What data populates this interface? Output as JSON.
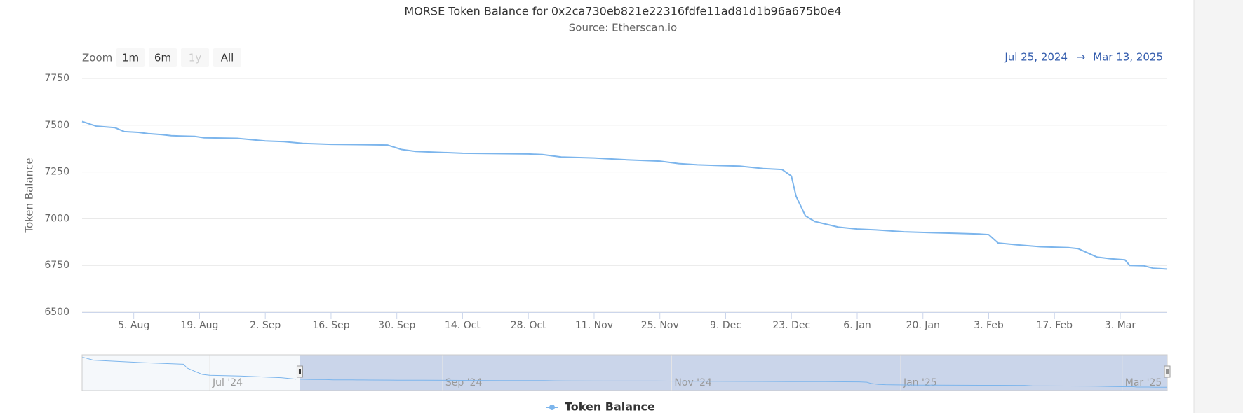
{
  "chart_data": {
    "type": "line",
    "title": "MORSE Token Balance for 0x2ca730eb821e22316fdfe11ad81d1b96a675b0e4",
    "subtitle": "Source: Etherscan.io",
    "y_label": "Token Balance",
    "range_selector": {
      "label": "Zoom",
      "buttons": [
        "1m",
        "6m",
        "1y",
        "All"
      ],
      "disabled": [
        "1y"
      ],
      "from": "Jul 25, 2024",
      "arrow": "→",
      "to": "Mar 13, 2025"
    },
    "x": [
      "2024-07-25",
      "2024-07-28",
      "2024-08-01",
      "2024-08-03",
      "2024-08-06",
      "2024-08-08",
      "2024-08-11",
      "2024-08-13",
      "2024-08-18",
      "2024-08-20",
      "2024-08-27",
      "2024-09-02",
      "2024-09-06",
      "2024-09-10",
      "2024-09-16",
      "2024-09-23",
      "2024-09-28",
      "2024-10-01",
      "2024-10-04",
      "2024-10-14",
      "2024-10-28",
      "2024-10-31",
      "2024-11-04",
      "2024-11-11",
      "2024-11-18",
      "2024-11-25",
      "2024-11-29",
      "2024-12-03",
      "2024-12-08",
      "2024-12-12",
      "2024-12-17",
      "2024-12-21",
      "2024-12-23",
      "2024-12-24",
      "2024-12-26",
      "2024-12-28",
      "2025-01-02",
      "2025-01-06",
      "2025-01-10",
      "2025-01-16",
      "2025-01-22",
      "2025-01-27",
      "2025-02-01",
      "2025-02-03",
      "2025-02-05",
      "2025-02-09",
      "2025-02-14",
      "2025-02-20",
      "2025-02-22",
      "2025-02-26",
      "2025-03-01",
      "2025-03-04",
      "2025-03-05",
      "2025-03-08",
      "2025-03-10",
      "2025-03-13"
    ],
    "series": [
      {
        "name": "Token Balance",
        "color": "#7cb5ec",
        "values": [
          7520,
          7495,
          7487,
          7466,
          7462,
          7455,
          7450,
          7444,
          7440,
          7433,
          7430,
          7416,
          7412,
          7403,
          7398,
          7396,
          7394,
          7370,
          7360,
          7350,
          7346,
          7343,
          7330,
          7325,
          7315,
          7308,
          7295,
          7288,
          7284,
          7281,
          7268,
          7263,
          7228,
          7120,
          7015,
          6985,
          6955,
          6945,
          6940,
          6930,
          6925,
          6922,
          6918,
          6915,
          6870,
          6860,
          6850,
          6845,
          6840,
          6795,
          6785,
          6780,
          6750,
          6748,
          6735,
          6730
        ]
      }
    ],
    "xlim": [
      "2024-07-25",
      "2025-03-13"
    ],
    "xticks": [
      {
        "value": "2024-08-05",
        "label": "5. Aug"
      },
      {
        "value": "2024-08-19",
        "label": "19. Aug"
      },
      {
        "value": "2024-09-02",
        "label": "2. Sep"
      },
      {
        "value": "2024-09-16",
        "label": "16. Sep"
      },
      {
        "value": "2024-09-30",
        "label": "30. Sep"
      },
      {
        "value": "2024-10-14",
        "label": "14. Oct"
      },
      {
        "value": "2024-10-28",
        "label": "28. Oct"
      },
      {
        "value": "2024-11-11",
        "label": "11. Nov"
      },
      {
        "value": "2024-11-25",
        "label": "25. Nov"
      },
      {
        "value": "2024-12-09",
        "label": "9. Dec"
      },
      {
        "value": "2024-12-23",
        "label": "23. Dec"
      },
      {
        "value": "2025-01-06",
        "label": "6. Jan"
      },
      {
        "value": "2025-01-20",
        "label": "20. Jan"
      },
      {
        "value": "2025-02-03",
        "label": "3. Feb"
      },
      {
        "value": "2025-02-17",
        "label": "17. Feb"
      },
      {
        "value": "2025-03-03",
        "label": "3. Mar"
      }
    ],
    "ylim": [
      6500,
      7750
    ],
    "yticks": [
      6500,
      6750,
      7000,
      7250,
      7500,
      7750
    ],
    "grid": true,
    "navigator": {
      "x": [
        "2024-05-28",
        "2024-05-31",
        "2024-06-13",
        "2024-06-24",
        "2024-06-25",
        "2024-06-27",
        "2024-06-29",
        "2024-07-01",
        "2024-07-09",
        "2024-07-20",
        "2024-07-24"
      ],
      "values": [
        9730,
        9420,
        9180,
        9020,
        8630,
        8310,
        8000,
        7920,
        7840,
        7680,
        7525
      ],
      "xlim": [
        "2024-05-28",
        "2025-03-13"
      ],
      "ylim": [
        6400,
        9950
      ],
      "xticks": [
        {
          "value": "2024-07-01",
          "label": "Jul '24"
        },
        {
          "value": "2024-09-01",
          "label": "Sep '24"
        },
        {
          "value": "2024-11-01",
          "label": "Nov '24"
        },
        {
          "value": "2025-01-01",
          "label": "Jan '25"
        },
        {
          "value": "2025-03-01",
          "label": "Mar '25"
        }
      ]
    }
  }
}
